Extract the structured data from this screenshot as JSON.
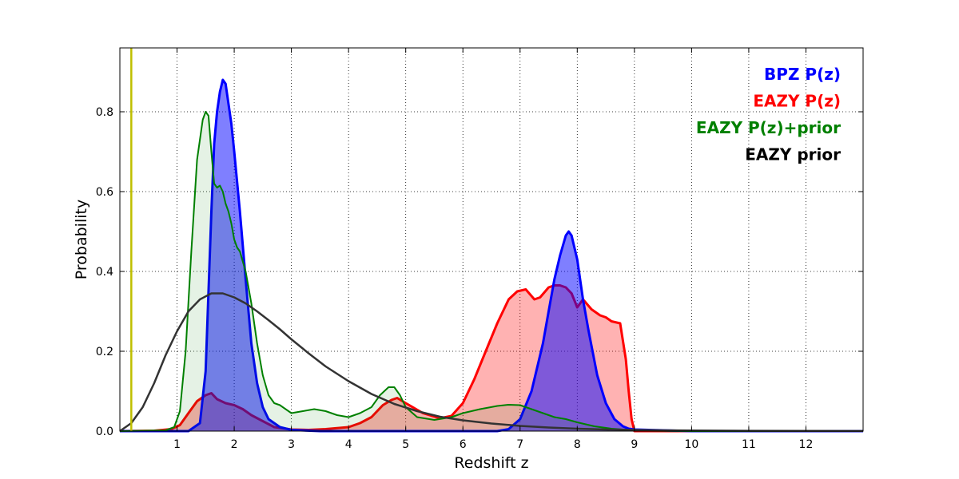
{
  "chart_data": {
    "type": "area",
    "title": "",
    "xlabel": "Redshift z",
    "ylabel": "Probability",
    "xlim": [
      0,
      13
    ],
    "ylim": [
      0,
      0.96
    ],
    "xticks": [
      1,
      2,
      3,
      4,
      5,
      6,
      7,
      8,
      9,
      10,
      11,
      12
    ],
    "yticks": [
      0.0,
      0.2,
      0.4,
      0.6,
      0.8
    ],
    "grid": true,
    "legend_position": "top-right",
    "vertical_line": {
      "x": 0.2,
      "color": "#bfbf00"
    },
    "series": [
      {
        "name": "EAZY P(z)",
        "color": "#ff0000",
        "fill": true,
        "x": [
          0,
          0.6,
          0.9,
          1.05,
          1.2,
          1.35,
          1.5,
          1.6,
          1.7,
          1.85,
          2.0,
          2.15,
          2.3,
          2.5,
          2.7,
          3.0,
          3.3,
          3.6,
          4.0,
          4.2,
          4.4,
          4.6,
          4.75,
          4.85,
          5.0,
          5.3,
          5.6,
          5.8,
          6.0,
          6.2,
          6.4,
          6.6,
          6.8,
          6.95,
          7.1,
          7.25,
          7.35,
          7.5,
          7.6,
          7.7,
          7.8,
          7.9,
          8.0,
          8.1,
          8.25,
          8.4,
          8.5,
          8.6,
          8.75,
          8.85,
          8.9,
          8.95,
          9.0,
          9.5,
          13
        ],
        "y": [
          0,
          0.001,
          0.005,
          0.015,
          0.045,
          0.075,
          0.09,
          0.095,
          0.08,
          0.07,
          0.065,
          0.055,
          0.04,
          0.025,
          0.01,
          0.004,
          0.003,
          0.005,
          0.01,
          0.02,
          0.035,
          0.065,
          0.078,
          0.083,
          0.07,
          0.045,
          0.032,
          0.038,
          0.07,
          0.13,
          0.2,
          0.27,
          0.33,
          0.35,
          0.355,
          0.33,
          0.335,
          0.36,
          0.365,
          0.365,
          0.36,
          0.345,
          0.31,
          0.33,
          0.305,
          0.29,
          0.285,
          0.275,
          0.27,
          0.18,
          0.1,
          0.03,
          0.0,
          0,
          0
        ]
      },
      {
        "name": "BPZ P(z)",
        "color": "#0000ff",
        "fill": true,
        "x": [
          0,
          1.2,
          1.4,
          1.5,
          1.55,
          1.6,
          1.65,
          1.7,
          1.75,
          1.8,
          1.85,
          1.9,
          1.95,
          2.0,
          2.1,
          2.2,
          2.3,
          2.4,
          2.5,
          2.6,
          2.8,
          3.0,
          3.5,
          4,
          5,
          6,
          6.6,
          6.8,
          7.0,
          7.2,
          7.4,
          7.5,
          7.6,
          7.7,
          7.8,
          7.85,
          7.9,
          8.0,
          8.1,
          8.2,
          8.35,
          8.5,
          8.65,
          8.8,
          8.9,
          9.0,
          9.5,
          10,
          13
        ],
        "y": [
          0,
          0.0,
          0.02,
          0.15,
          0.35,
          0.55,
          0.72,
          0.8,
          0.85,
          0.88,
          0.87,
          0.82,
          0.77,
          0.7,
          0.55,
          0.38,
          0.22,
          0.12,
          0.06,
          0.03,
          0.01,
          0.003,
          0.0,
          0,
          0,
          0,
          0.0,
          0.005,
          0.03,
          0.1,
          0.22,
          0.3,
          0.38,
          0.44,
          0.49,
          0.5,
          0.49,
          0.43,
          0.33,
          0.25,
          0.14,
          0.07,
          0.03,
          0.012,
          0.006,
          0.004,
          0.002,
          0.0,
          0
        ]
      },
      {
        "name": "EAZY P(z)+prior",
        "color": "#008000",
        "fill": true,
        "x": [
          0,
          0.8,
          0.95,
          1.05,
          1.15,
          1.25,
          1.35,
          1.45,
          1.5,
          1.55,
          1.6,
          1.65,
          1.7,
          1.75,
          1.8,
          1.85,
          1.9,
          1.95,
          2.0,
          2.05,
          2.1,
          2.2,
          2.3,
          2.4,
          2.5,
          2.6,
          2.7,
          2.8,
          3.0,
          3.2,
          3.4,
          3.6,
          3.8,
          4.0,
          4.2,
          4.4,
          4.55,
          4.7,
          4.8,
          4.9,
          5.0,
          5.2,
          5.5,
          5.8,
          6.0,
          6.3,
          6.6,
          6.8,
          7.0,
          7.2,
          7.4,
          7.6,
          7.8,
          8.0,
          8.3,
          8.6,
          8.9,
          9.2,
          10,
          13
        ],
        "y": [
          0,
          0.002,
          0.01,
          0.05,
          0.2,
          0.45,
          0.68,
          0.78,
          0.8,
          0.79,
          0.7,
          0.62,
          0.61,
          0.615,
          0.6,
          0.57,
          0.55,
          0.52,
          0.48,
          0.46,
          0.45,
          0.4,
          0.32,
          0.22,
          0.14,
          0.09,
          0.07,
          0.065,
          0.045,
          0.05,
          0.055,
          0.05,
          0.04,
          0.035,
          0.045,
          0.06,
          0.09,
          0.11,
          0.11,
          0.09,
          0.06,
          0.035,
          0.028,
          0.035,
          0.045,
          0.055,
          0.063,
          0.066,
          0.065,
          0.055,
          0.045,
          0.035,
          0.03,
          0.022,
          0.012,
          0.006,
          0.003,
          0.001,
          0.0,
          0
        ]
      },
      {
        "name": "EAZY prior",
        "color": "#333333",
        "fill": false,
        "x": [
          0,
          0.2,
          0.4,
          0.6,
          0.8,
          1.0,
          1.2,
          1.4,
          1.6,
          1.8,
          2.0,
          2.2,
          2.4,
          2.6,
          2.8,
          3.0,
          3.3,
          3.6,
          4.0,
          4.4,
          4.8,
          5.2,
          5.6,
          6.0,
          6.5,
          7.0,
          7.5,
          8.0,
          8.5,
          9.0,
          9.5,
          10,
          11,
          12,
          13
        ],
        "y": [
          0,
          0.02,
          0.06,
          0.12,
          0.19,
          0.25,
          0.3,
          0.33,
          0.345,
          0.345,
          0.335,
          0.32,
          0.3,
          0.278,
          0.255,
          0.23,
          0.195,
          0.162,
          0.125,
          0.093,
          0.068,
          0.05,
          0.036,
          0.027,
          0.019,
          0.013,
          0.009,
          0.006,
          0.004,
          0.003,
          0.002,
          0.0015,
          0.0008,
          0.0004,
          0.0002
        ]
      }
    ],
    "legend": [
      {
        "label": "BPZ P(z)",
        "color": "#0000ff"
      },
      {
        "label": "EAZY P(z)",
        "color": "#ff0000"
      },
      {
        "label": "EAZY P(z)+prior",
        "color": "#008000"
      },
      {
        "label": "EAZY prior",
        "color": "#000000"
      }
    ]
  }
}
